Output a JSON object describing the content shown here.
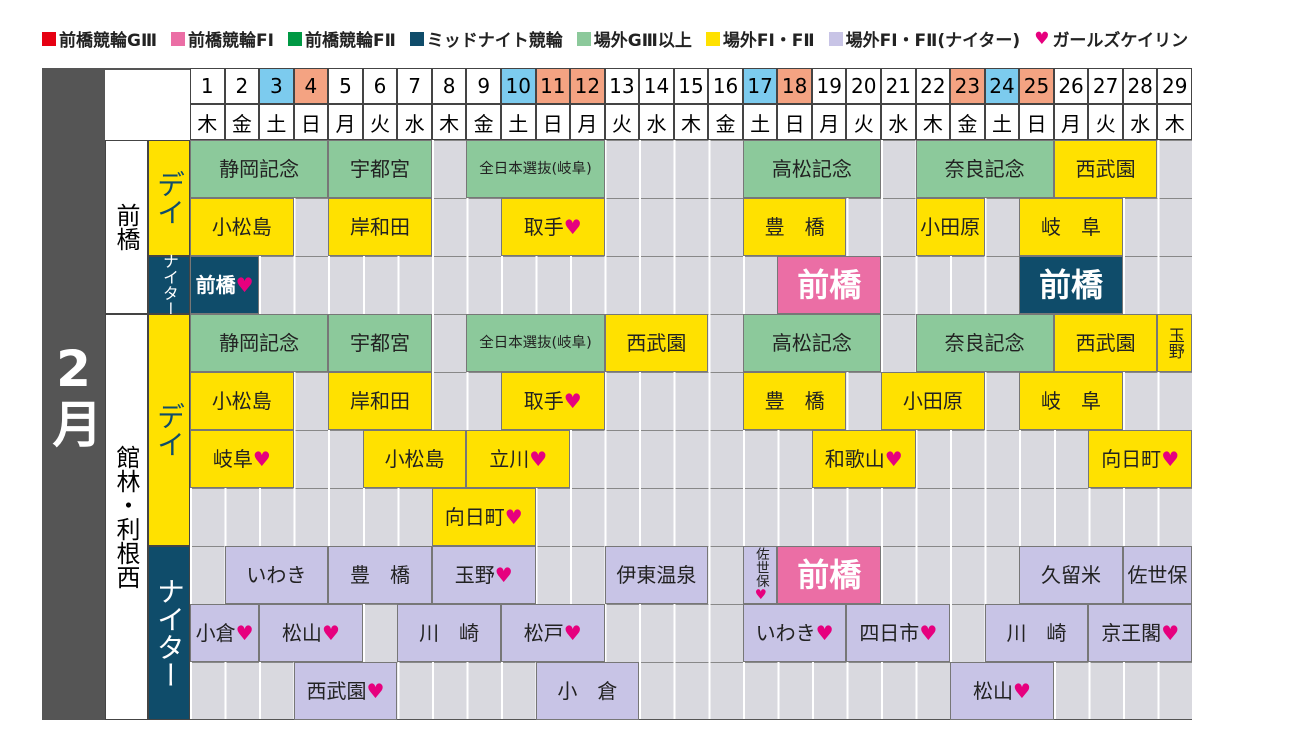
{
  "legend": [
    {
      "label": "前橋競輪GⅢ",
      "color": "#e60012"
    },
    {
      "label": "前橋競輪FⅠ",
      "color": "#eb6ea5"
    },
    {
      "label": "前橋競輪FⅡ",
      "color": "#009944"
    },
    {
      "label": "ミッドナイト競輪",
      "color": "#0f4c6a"
    },
    {
      "label": "場外GⅢ以上",
      "color": "#8cc99b"
    },
    {
      "label": "場外FⅠ・FⅡ",
      "color": "#ffe100"
    },
    {
      "label": "場外FⅠ・FⅡ(ナイター)",
      "color": "#c8c4e6"
    },
    {
      "symbol": "♥",
      "label": "ガールズケイリン"
    }
  ],
  "month": "2月",
  "days": [
    {
      "day": 1,
      "weekday": "木"
    },
    {
      "day": 2,
      "weekday": "金"
    },
    {
      "day": 3,
      "weekday": "土",
      "color": "#7ccbee"
    },
    {
      "day": 4,
      "weekday": "日",
      "color": "#f4a382"
    },
    {
      "day": 5,
      "weekday": "月"
    },
    {
      "day": 6,
      "weekday": "火"
    },
    {
      "day": 7,
      "weekday": "水"
    },
    {
      "day": 8,
      "weekday": "木"
    },
    {
      "day": 9,
      "weekday": "金"
    },
    {
      "day": 10,
      "weekday": "土",
      "color": "#7ccbee"
    },
    {
      "day": 11,
      "weekday": "日",
      "color": "#f4a382"
    },
    {
      "day": 12,
      "weekday": "月",
      "color": "#f4a382"
    },
    {
      "day": 13,
      "weekday": "火"
    },
    {
      "day": 14,
      "weekday": "水"
    },
    {
      "day": 15,
      "weekday": "木"
    },
    {
      "day": 16,
      "weekday": "金"
    },
    {
      "day": 17,
      "weekday": "土",
      "color": "#7ccbee"
    },
    {
      "day": 18,
      "weekday": "日",
      "color": "#f4a382"
    },
    {
      "day": 19,
      "weekday": "月"
    },
    {
      "day": 20,
      "weekday": "火"
    },
    {
      "day": 21,
      "weekday": "水"
    },
    {
      "day": 22,
      "weekday": "木"
    },
    {
      "day": 23,
      "weekday": "金",
      "color": "#f4a382"
    },
    {
      "day": 24,
      "weekday": "土",
      "color": "#7ccbee"
    },
    {
      "day": 25,
      "weekday": "日",
      "color": "#f4a382"
    },
    {
      "day": 26,
      "weekday": "月"
    },
    {
      "day": 27,
      "weekday": "火"
    },
    {
      "day": 28,
      "weekday": "水"
    },
    {
      "day": 29,
      "weekday": "木"
    }
  ],
  "venues": [
    {
      "name": "前橋",
      "sessions": [
        {
          "name": "デイ",
          "rows": [
            [
              {
                "label": "静岡記念",
                "start": 1,
                "end": 4,
                "color": "#8cc99b"
              },
              {
                "label": "宇都宮",
                "start": 5,
                "end": 7,
                "color": "#8cc99b"
              },
              {
                "label": "全日本選抜(岐阜)",
                "start": 9,
                "end": 12,
                "color": "#8cc99b"
              },
              {
                "label": "高松記念",
                "start": 17,
                "end": 20,
                "color": "#8cc99b"
              },
              {
                "label": "奈良記念",
                "start": 22,
                "end": 25,
                "color": "#8cc99b"
              },
              {
                "label": "西武園",
                "start": 26,
                "end": 28,
                "color": "#ffe100"
              }
            ],
            [
              {
                "label": "小松島",
                "start": 1,
                "end": 3,
                "color": "#ffe100"
              },
              {
                "label": "岸和田",
                "start": 5,
                "end": 7,
                "color": "#ffe100"
              },
              {
                "label": "取手♥",
                "start": 10,
                "end": 12,
                "color": "#ffe100"
              },
              {
                "label": "豊　橋",
                "start": 17,
                "end": 19,
                "color": "#ffe100"
              },
              {
                "label": "小田原",
                "start": 22,
                "end": 23,
                "color": "#ffe100"
              },
              {
                "label": "岐　阜",
                "start": 25,
                "end": 27,
                "color": "#ffe100"
              }
            ]
          ]
        },
        {
          "name": "ナイター",
          "rows": [
            [
              {
                "label": "前橋♥",
                "start": 1,
                "end": 2,
                "color": "#0f4c6a"
              },
              {
                "label": "前橋",
                "start": 18,
                "end": 20,
                "color": "#eb6ea5"
              },
              {
                "label": "前橋",
                "start": 25,
                "end": 27,
                "color": "#0f4c6a"
              }
            ]
          ]
        }
      ]
    },
    {
      "name": "館林・利根西",
      "sessions": [
        {
          "name": "デイ",
          "rows": [
            [
              {
                "label": "静岡記念",
                "start": 1,
                "end": 4,
                "color": "#8cc99b"
              },
              {
                "label": "宇都宮",
                "start": 5,
                "end": 7,
                "color": "#8cc99b"
              },
              {
                "label": "全日本選抜(岐阜)",
                "start": 9,
                "end": 12,
                "color": "#8cc99b"
              },
              {
                "label": "西武園",
                "start": 13,
                "end": 15,
                "color": "#ffe100"
              },
              {
                "label": "高松記念",
                "start": 17,
                "end": 20,
                "color": "#8cc99b"
              },
              {
                "label": "奈良記念",
                "start": 22,
                "end": 25,
                "color": "#8cc99b"
              },
              {
                "label": "西武園",
                "start": 26,
                "end": 28,
                "color": "#ffe100"
              },
              {
                "label": "玉野",
                "start": 29,
                "end": 29,
                "color": "#ffe100"
              }
            ],
            [
              {
                "label": "小松島",
                "start": 1,
                "end": 3,
                "color": "#ffe100"
              },
              {
                "label": "岸和田",
                "start": 5,
                "end": 7,
                "color": "#ffe100"
              },
              {
                "label": "取手♥",
                "start": 10,
                "end": 12,
                "color": "#ffe100"
              },
              {
                "label": "豊　橋",
                "start": 17,
                "end": 19,
                "color": "#ffe100"
              },
              {
                "label": "小田原",
                "start": 21,
                "end": 23,
                "color": "#ffe100"
              },
              {
                "label": "岐　阜",
                "start": 25,
                "end": 27,
                "color": "#ffe100"
              }
            ],
            [
              {
                "label": "岐阜♥",
                "start": 1,
                "end": 3,
                "color": "#ffe100"
              },
              {
                "label": "小松島",
                "start": 6,
                "end": 8,
                "color": "#ffe100"
              },
              {
                "label": "立川♥",
                "start": 9,
                "end": 11,
                "color": "#ffe100"
              },
              {
                "label": "和歌山♥",
                "start": 19,
                "end": 21,
                "color": "#ffe100"
              },
              {
                "label": "向日町♥",
                "start": 27,
                "end": 29,
                "color": "#ffe100"
              }
            ],
            [
              {
                "label": "向日町♥",
                "start": 8,
                "end": 10,
                "color": "#ffe100"
              }
            ]
          ]
        },
        {
          "name": "ナイター",
          "rows": [
            [
              {
                "label": "いわき",
                "start": 2,
                "end": 4,
                "color": "#c8c4e6"
              },
              {
                "label": "豊　橋",
                "start": 5,
                "end": 7,
                "color": "#c8c4e6"
              },
              {
                "label": "玉野♥",
                "start": 8,
                "end": 10,
                "color": "#c8c4e6"
              },
              {
                "label": "伊東温泉",
                "start": 13,
                "end": 15,
                "color": "#c8c4e6"
              },
              {
                "label": "佐世保♥",
                "start": 17,
                "end": 17,
                "color": "#c8c4e6"
              },
              {
                "label": "前橋",
                "start": 18,
                "end": 20,
                "color": "#eb6ea5"
              },
              {
                "label": "久留米",
                "start": 25,
                "end": 27,
                "color": "#c8c4e6"
              },
              {
                "label": "佐世保",
                "start": 28,
                "end": 29,
                "color": "#c8c4e6"
              }
            ],
            [
              {
                "label": "小倉♥",
                "start": 1,
                "end": 2,
                "color": "#c8c4e6"
              },
              {
                "label": "松山♥",
                "start": 3,
                "end": 5,
                "color": "#c8c4e6"
              },
              {
                "label": "川　崎",
                "start": 7,
                "end": 9,
                "color": "#c8c4e6"
              },
              {
                "label": "松戸♥",
                "start": 10,
                "end": 12,
                "color": "#c8c4e6"
              },
              {
                "label": "いわき♥",
                "start": 17,
                "end": 19,
                "color": "#c8c4e6"
              },
              {
                "label": "四日市♥",
                "start": 20,
                "end": 22,
                "color": "#c8c4e6"
              },
              {
                "label": "川　崎",
                "start": 24,
                "end": 26,
                "color": "#c8c4e6"
              },
              {
                "label": "京王閣♥",
                "start": 27,
                "end": 29,
                "color": "#c8c4e6"
              }
            ],
            [
              {
                "label": "西武園♥",
                "start": 4,
                "end": 6,
                "color": "#c8c4e6"
              },
              {
                "label": "小　倉",
                "start": 11,
                "end": 13,
                "color": "#c8c4e6"
              },
              {
                "label": "松山♥",
                "start": 23,
                "end": 25,
                "color": "#c8c4e6"
              }
            ]
          ]
        }
      ]
    }
  ]
}
